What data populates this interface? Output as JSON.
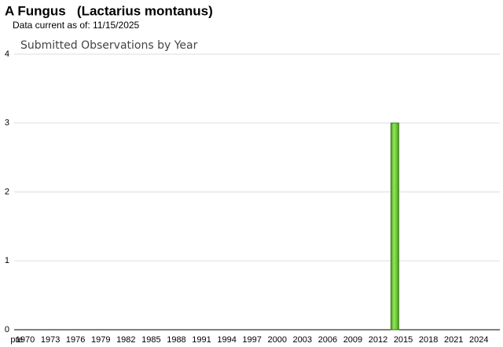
{
  "title": "A Fungus   (Lactarius montanus)",
  "subtitle": "Data current as of: 11/15/2025",
  "chart_data": {
    "type": "bar",
    "title": "Submitted Observations by Year",
    "categories": [
      "pre",
      "1970",
      null,
      null,
      "1973",
      null,
      null,
      "1976",
      null,
      null,
      "1979",
      null,
      null,
      "1982",
      null,
      null,
      "1985",
      null,
      null,
      "1988",
      null,
      null,
      "1991",
      null,
      null,
      "1994",
      null,
      null,
      "1997",
      null,
      null,
      "2000",
      null,
      null,
      "2003",
      null,
      null,
      "2006",
      null,
      null,
      "2009",
      null,
      null,
      "2012",
      null,
      null,
      "2015",
      null,
      null,
      "2018",
      null,
      null,
      "2021",
      null,
      null,
      "2024",
      null,
      null
    ],
    "values": [
      0,
      0,
      0,
      0,
      0,
      0,
      0,
      0,
      0,
      0,
      0,
      0,
      0,
      0,
      0,
      0,
      0,
      0,
      0,
      0,
      0,
      0,
      0,
      0,
      0,
      0,
      0,
      0,
      0,
      0,
      0,
      0,
      0,
      0,
      0,
      0,
      0,
      0,
      0,
      0,
      0,
      0,
      0,
      0,
      0,
      3,
      0,
      0,
      0,
      0,
      0,
      0,
      0,
      0,
      0,
      0,
      0,
      0
    ],
    "color": "#66cc33",
    "ylim": [
      0,
      4
    ],
    "yticks": [
      0,
      1,
      2,
      3,
      4
    ],
    "grid": true
  }
}
